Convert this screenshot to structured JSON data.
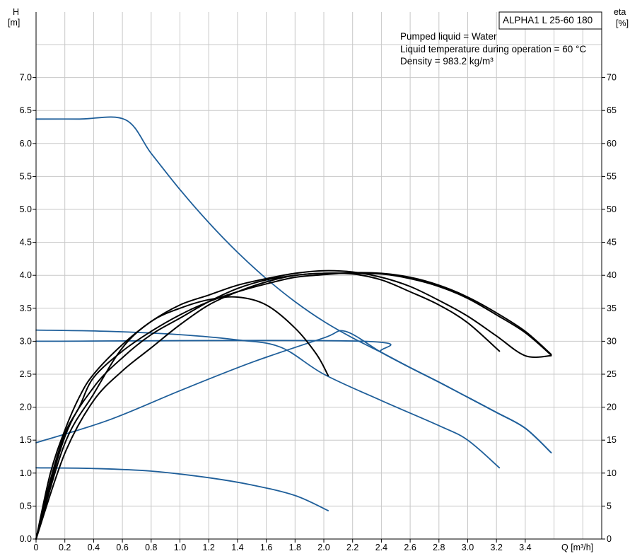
{
  "chart_data": {
    "type": "line",
    "title": "ALPHA1 L 25-60 180",
    "info_lines": [
      "Pumped liquid = Water",
      "Liquid temperature during operation = 60 °C",
      "Density = 983.2 kg/m³"
    ],
    "xlabel": "Q [m³/h]",
    "ylabel_left": {
      "symbol": "H",
      "unit": "[m]"
    },
    "ylabel_right": {
      "symbol": "eta",
      "unit": "[%]"
    },
    "xlim": [
      0,
      3.95
    ],
    "ylim": [
      0,
      7.0
    ],
    "ylim_right": [
      0,
      70
    ],
    "x_ticks": [
      "0",
      "0.2",
      "0.4",
      "0.6",
      "0.8",
      "1.0",
      "1.2",
      "1.4",
      "1.6",
      "1.8",
      "2.0",
      "2.2",
      "2.4",
      "2.6",
      "2.8",
      "3.0",
      "3.2",
      "3.4"
    ],
    "y_ticks_left": [
      "0.0",
      "0.5",
      "1.0",
      "1.5",
      "2.0",
      "2.5",
      "3.0",
      "3.5",
      "4.0",
      "4.5",
      "5.0",
      "5.5",
      "6.0",
      "6.5",
      "7.0"
    ],
    "y_ticks_right": [
      "0",
      "5",
      "10",
      "15",
      "20",
      "25",
      "30",
      "35",
      "40",
      "45",
      "50",
      "55",
      "60",
      "65",
      "70"
    ],
    "grid": true,
    "colors": {
      "head_curves": "#1f5f9a",
      "efficiency_curves": "#000000",
      "grid": "#c8c8c8"
    },
    "series": [
      {
        "kind": "head",
        "points": [
          [
            0,
            6.37
          ],
          [
            0.3,
            6.37
          ],
          [
            0.62,
            6.36
          ],
          [
            0.8,
            5.85
          ],
          [
            1.0,
            5.3
          ],
          [
            1.2,
            4.8
          ],
          [
            1.4,
            4.35
          ],
          [
            1.6,
            3.95
          ],
          [
            1.8,
            3.6
          ],
          [
            2.0,
            3.3
          ],
          [
            2.2,
            3.05
          ],
          [
            2.4,
            2.83
          ],
          [
            2.6,
            2.6
          ],
          [
            2.8,
            2.38
          ],
          [
            3.0,
            2.15
          ],
          [
            3.2,
            1.92
          ],
          [
            3.4,
            1.68
          ],
          [
            3.58,
            1.31
          ]
        ]
      },
      {
        "kind": "head",
        "points": [
          [
            0,
            3.0
          ],
          [
            2.26,
            3.0
          ],
          [
            2.4,
            2.83
          ],
          [
            2.6,
            2.6
          ],
          [
            2.8,
            2.38
          ],
          [
            3.0,
            2.15
          ],
          [
            3.2,
            1.92
          ],
          [
            3.4,
            1.68
          ],
          [
            3.58,
            1.31
          ]
        ]
      },
      {
        "kind": "head",
        "points": [
          [
            0,
            1.46
          ],
          [
            0.5,
            1.8
          ],
          [
            1.0,
            2.25
          ],
          [
            1.5,
            2.68
          ],
          [
            2.0,
            3.05
          ],
          [
            2.15,
            3.15
          ],
          [
            2.4,
            2.83
          ],
          [
            2.6,
            2.6
          ],
          [
            2.8,
            2.38
          ],
          [
            3.0,
            2.15
          ],
          [
            3.2,
            1.92
          ],
          [
            3.4,
            1.68
          ],
          [
            3.58,
            1.31
          ]
        ]
      },
      {
        "kind": "head",
        "points": [
          [
            0,
            3.17
          ],
          [
            0.5,
            3.15
          ],
          [
            1.0,
            3.1
          ],
          [
            1.4,
            3.02
          ],
          [
            1.7,
            2.91
          ],
          [
            2.0,
            2.5
          ],
          [
            2.4,
            2.1
          ],
          [
            2.8,
            1.72
          ],
          [
            3.0,
            1.5
          ],
          [
            3.22,
            1.08
          ]
        ]
      },
      {
        "kind": "head",
        "points": [
          [
            0,
            1.08
          ],
          [
            0.4,
            1.07
          ],
          [
            0.8,
            1.03
          ],
          [
            1.2,
            0.93
          ],
          [
            1.5,
            0.82
          ],
          [
            1.8,
            0.66
          ],
          [
            2.03,
            0.43
          ]
        ]
      },
      {
        "kind": "efficiency",
        "points": [
          [
            0,
            0
          ],
          [
            0.1,
            10
          ],
          [
            0.2,
            16.5
          ],
          [
            0.3,
            21.5
          ],
          [
            0.4,
            25
          ],
          [
            0.6,
            29.5
          ],
          [
            0.8,
            33
          ],
          [
            1.0,
            35.5
          ],
          [
            1.2,
            37
          ],
          [
            1.4,
            38.5
          ],
          [
            1.6,
            39.5
          ],
          [
            1.8,
            40.3
          ],
          [
            2.0,
            40.7
          ],
          [
            2.2,
            40.5
          ],
          [
            2.4,
            39.7
          ],
          [
            2.6,
            38.3
          ],
          [
            2.8,
            36.2
          ],
          [
            3.0,
            33.8
          ],
          [
            3.2,
            30.8
          ],
          [
            3.4,
            27.8
          ],
          [
            3.58,
            27.8
          ]
        ]
      },
      {
        "kind": "efficiency",
        "points": [
          [
            0,
            0
          ],
          [
            0.2,
            13
          ],
          [
            0.4,
            21
          ],
          [
            0.6,
            25.5
          ],
          [
            0.8,
            29
          ],
          [
            1.0,
            32.5
          ],
          [
            1.2,
            35.5
          ],
          [
            1.4,
            37.5
          ],
          [
            1.6,
            39
          ],
          [
            1.8,
            40
          ],
          [
            2.0,
            40.3
          ],
          [
            2.2,
            40.3
          ],
          [
            2.4,
            40.2
          ],
          [
            2.6,
            39.5
          ],
          [
            2.8,
            38.3
          ],
          [
            3.0,
            36.5
          ],
          [
            3.2,
            34
          ],
          [
            3.4,
            31.3
          ],
          [
            3.58,
            27.9
          ]
        ]
      },
      {
        "kind": "efficiency",
        "points": [
          [
            0,
            0
          ],
          [
            0.2,
            15.5
          ],
          [
            0.4,
            23
          ],
          [
            0.6,
            27.5
          ],
          [
            0.8,
            31
          ],
          [
            1.0,
            33.5
          ],
          [
            1.2,
            36
          ],
          [
            1.4,
            38
          ],
          [
            1.6,
            39.3
          ],
          [
            1.8,
            40
          ],
          [
            2.0,
            40.3
          ],
          [
            2.2,
            40.2
          ],
          [
            2.4,
            39.3
          ],
          [
            2.6,
            37.5
          ],
          [
            2.8,
            35.5
          ],
          [
            3.0,
            32.8
          ],
          [
            3.22,
            28.5
          ]
        ]
      },
      {
        "kind": "efficiency",
        "points": [
          [
            0,
            0
          ],
          [
            0.2,
            14.5
          ],
          [
            0.4,
            22
          ],
          [
            0.6,
            29
          ],
          [
            0.8,
            33
          ],
          [
            1.0,
            35
          ],
          [
            1.2,
            36.3
          ],
          [
            1.4,
            36.7
          ],
          [
            1.6,
            35.5
          ],
          [
            1.8,
            32
          ],
          [
            1.95,
            28
          ],
          [
            2.03,
            24.8
          ]
        ]
      },
      {
        "kind": "efficiency",
        "points": [
          [
            0,
            0
          ],
          [
            0.1,
            9
          ],
          [
            0.2,
            16
          ],
          [
            0.3,
            20
          ],
          [
            0.4,
            24.5
          ],
          [
            0.6,
            28.5
          ],
          [
            0.8,
            31.5
          ],
          [
            1.0,
            34
          ],
          [
            1.2,
            36
          ],
          [
            1.4,
            37.5
          ],
          [
            1.6,
            38.7
          ],
          [
            1.8,
            39.7
          ],
          [
            2.0,
            40.1
          ],
          [
            2.2,
            40.4
          ],
          [
            2.4,
            40.3
          ],
          [
            2.6,
            39.7
          ],
          [
            2.8,
            38.5
          ],
          [
            3.0,
            36.7
          ],
          [
            3.2,
            34.3
          ],
          [
            3.4,
            31.5
          ],
          [
            3.58,
            28
          ]
        ]
      }
    ]
  }
}
